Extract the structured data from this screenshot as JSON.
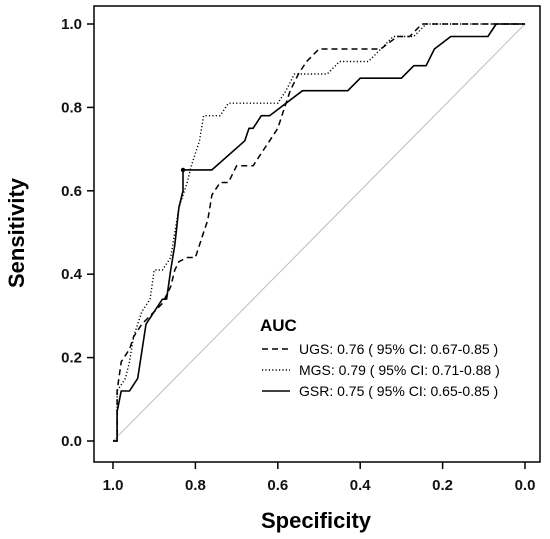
{
  "chart_data": {
    "type": "line",
    "xlabel": "Specificity",
    "ylabel": "Sensitivity",
    "xlim": [
      1.05,
      0.0
    ],
    "ylim": [
      0.0,
      1.0
    ],
    "x_ticks": [
      "1.0",
      "0.8",
      "0.6",
      "0.4",
      "0.2",
      "0.0"
    ],
    "y_ticks": [
      "0.0",
      "0.2",
      "0.4",
      "0.6",
      "0.8",
      "1.0"
    ],
    "reference_line": {
      "from": [
        1.0,
        0.0
      ],
      "to": [
        0.0,
        1.0
      ]
    },
    "legend": {
      "title": "AUC",
      "placement": "bottom-right"
    },
    "series": [
      {
        "name": "UGS",
        "legend_label": "UGS: 0.76 ( 95% CI: 0.67-0.85 )",
        "dash": "dashed",
        "points": [
          [
            1.0,
            0.0
          ],
          [
            0.99,
            0.0
          ],
          [
            0.99,
            0.12
          ],
          [
            0.98,
            0.19
          ],
          [
            0.96,
            0.22
          ],
          [
            0.95,
            0.25
          ],
          [
            0.93,
            0.28
          ],
          [
            0.9,
            0.31
          ],
          [
            0.88,
            0.33
          ],
          [
            0.86,
            0.37
          ],
          [
            0.85,
            0.41
          ],
          [
            0.84,
            0.43
          ],
          [
            0.82,
            0.44
          ],
          [
            0.8,
            0.44
          ],
          [
            0.79,
            0.47
          ],
          [
            0.78,
            0.5
          ],
          [
            0.77,
            0.53
          ],
          [
            0.76,
            0.59
          ],
          [
            0.74,
            0.62
          ],
          [
            0.72,
            0.62
          ],
          [
            0.7,
            0.66
          ],
          [
            0.68,
            0.66
          ],
          [
            0.66,
            0.66
          ],
          [
            0.64,
            0.69
          ],
          [
            0.62,
            0.72
          ],
          [
            0.6,
            0.75
          ],
          [
            0.59,
            0.78
          ],
          [
            0.57,
            0.84
          ],
          [
            0.55,
            0.88
          ],
          [
            0.53,
            0.91
          ],
          [
            0.5,
            0.94
          ],
          [
            0.45,
            0.94
          ],
          [
            0.4,
            0.94
          ],
          [
            0.35,
            0.94
          ],
          [
            0.31,
            0.97
          ],
          [
            0.28,
            0.97
          ],
          [
            0.25,
            1.0
          ],
          [
            0.15,
            1.0
          ],
          [
            0.0,
            1.0
          ]
        ]
      },
      {
        "name": "MGS",
        "legend_label": "MGS: 0.79 ( 95% CI: 0.71-0.88 )",
        "dash": "dotted",
        "points": [
          [
            1.0,
            0.0
          ],
          [
            0.99,
            0.0
          ],
          [
            0.99,
            0.12
          ],
          [
            0.97,
            0.15
          ],
          [
            0.96,
            0.19
          ],
          [
            0.95,
            0.25
          ],
          [
            0.93,
            0.31
          ],
          [
            0.91,
            0.34
          ],
          [
            0.9,
            0.41
          ],
          [
            0.88,
            0.41
          ],
          [
            0.86,
            0.44
          ],
          [
            0.85,
            0.5
          ],
          [
            0.84,
            0.56
          ],
          [
            0.82,
            0.62
          ],
          [
            0.81,
            0.66
          ],
          [
            0.79,
            0.72
          ],
          [
            0.78,
            0.78
          ],
          [
            0.74,
            0.78
          ],
          [
            0.72,
            0.81
          ],
          [
            0.6,
            0.81
          ],
          [
            0.58,
            0.84
          ],
          [
            0.56,
            0.88
          ],
          [
            0.48,
            0.88
          ],
          [
            0.45,
            0.91
          ],
          [
            0.38,
            0.91
          ],
          [
            0.35,
            0.94
          ],
          [
            0.32,
            0.97
          ],
          [
            0.27,
            0.97
          ],
          [
            0.24,
            1.0
          ],
          [
            0.0,
            1.0
          ]
        ]
      },
      {
        "name": "GSR",
        "legend_label": "GSR: 0.75 ( 95% CI: 0.65-0.85 )",
        "dash": "solid",
        "points": [
          [
            1.0,
            0.0
          ],
          [
            0.99,
            0.0
          ],
          [
            0.99,
            0.07
          ],
          [
            0.98,
            0.12
          ],
          [
            0.96,
            0.12
          ],
          [
            0.94,
            0.15
          ],
          [
            0.92,
            0.28
          ],
          [
            0.9,
            0.31
          ],
          [
            0.88,
            0.34
          ],
          [
            0.87,
            0.34
          ],
          [
            0.86,
            0.41
          ],
          [
            0.85,
            0.47
          ],
          [
            0.84,
            0.56
          ],
          [
            0.83,
            0.6
          ],
          [
            0.83,
            0.65
          ],
          [
            0.76,
            0.65
          ],
          [
            0.68,
            0.72
          ],
          [
            0.67,
            0.75
          ],
          [
            0.66,
            0.75
          ],
          [
            0.64,
            0.78
          ],
          [
            0.62,
            0.78
          ],
          [
            0.58,
            0.81
          ],
          [
            0.54,
            0.84
          ],
          [
            0.43,
            0.84
          ],
          [
            0.4,
            0.87
          ],
          [
            0.3,
            0.87
          ],
          [
            0.27,
            0.9
          ],
          [
            0.24,
            0.9
          ],
          [
            0.22,
            0.94
          ],
          [
            0.18,
            0.97
          ],
          [
            0.09,
            0.97
          ],
          [
            0.07,
            1.0
          ],
          [
            0.0,
            1.0
          ]
        ]
      }
    ]
  }
}
